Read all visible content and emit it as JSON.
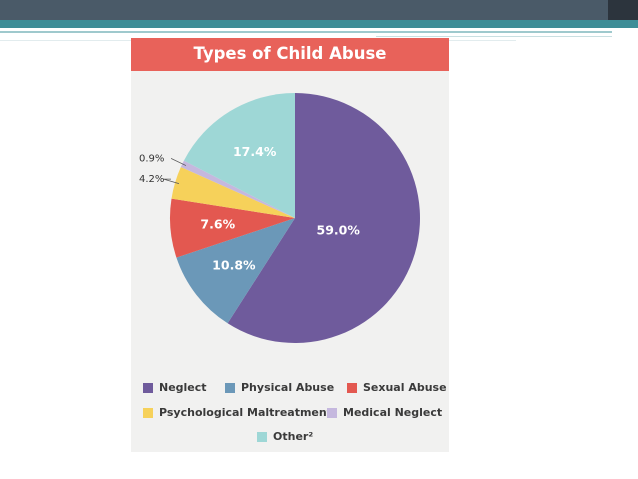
{
  "chart_data": {
    "type": "pie",
    "title": "Types of Child Abuse",
    "slices": [
      {
        "name": "Neglect",
        "value": 59.0,
        "label": "59.0%",
        "color": "#6f5b9c"
      },
      {
        "name": "Physical Abuse",
        "value": 10.8,
        "label": "10.8%",
        "color": "#6b98b8"
      },
      {
        "name": "Sexual Abuse",
        "value": 7.6,
        "label": "7.6%",
        "color": "#e35850"
      },
      {
        "name": "Psychological Maltreatment",
        "value": 4.2,
        "label": "4.2%",
        "color": "#f6d15a"
      },
      {
        "name": "Medical Neglect",
        "value": 0.9,
        "label": "0.9%",
        "color": "#c5b8de"
      },
      {
        "name": "Other",
        "value": 17.4,
        "label": "17.4%",
        "color": "#9ed7d6"
      }
    ],
    "legend": {
      "items": [
        "Neglect",
        "Physical Abuse",
        "Sexual Abuse",
        "Psychological Maltreatment",
        "Medical Neglect",
        "Other²"
      ],
      "placement": "bottom"
    }
  },
  "theme": {
    "title_bar_color": "#e8625a",
    "panel_color": "#f1f1f0"
  }
}
